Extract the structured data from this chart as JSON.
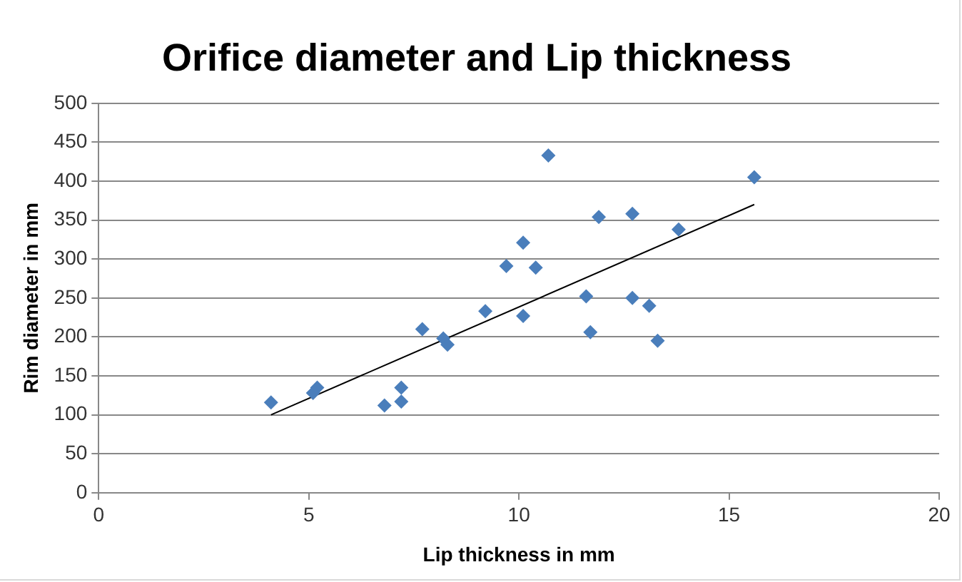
{
  "chart_data": {
    "type": "scatter",
    "title": "Orifice diameter and Lip thickness",
    "xlabel": "Lip thickness in mm",
    "ylabel": "Rim diameter in mm",
    "xlim": [
      0,
      20
    ],
    "xticks": [
      0,
      5,
      10,
      15,
      20
    ],
    "ylim": [
      0,
      500
    ],
    "yticks": [
      0,
      50,
      100,
      150,
      200,
      250,
      300,
      350,
      400,
      450,
      500
    ],
    "grid": "y",
    "legend": false,
    "marker": "diamond",
    "series": [
      {
        "color": "#4a7ebb",
        "x": [
          4.1,
          5.1,
          5.2,
          6.8,
          7.2,
          7.2,
          7.7,
          8.2,
          8.3,
          9.2,
          9.7,
          10.1,
          10.1,
          10.4,
          10.7,
          11.6,
          11.7,
          11.9,
          12.7,
          12.7,
          13.1,
          13.3,
          13.8,
          15.6
        ],
        "values": [
          116,
          128,
          135,
          112,
          117,
          135,
          210,
          198,
          190,
          233,
          291,
          321,
          227,
          289,
          433,
          252,
          206,
          354,
          358,
          250,
          240,
          195,
          338,
          405
        ]
      },
      {
        "type": "line",
        "color": "#000000",
        "x": [
          4.1,
          15.6
        ],
        "values": [
          100,
          370
        ],
        "marker": "none"
      }
    ]
  }
}
